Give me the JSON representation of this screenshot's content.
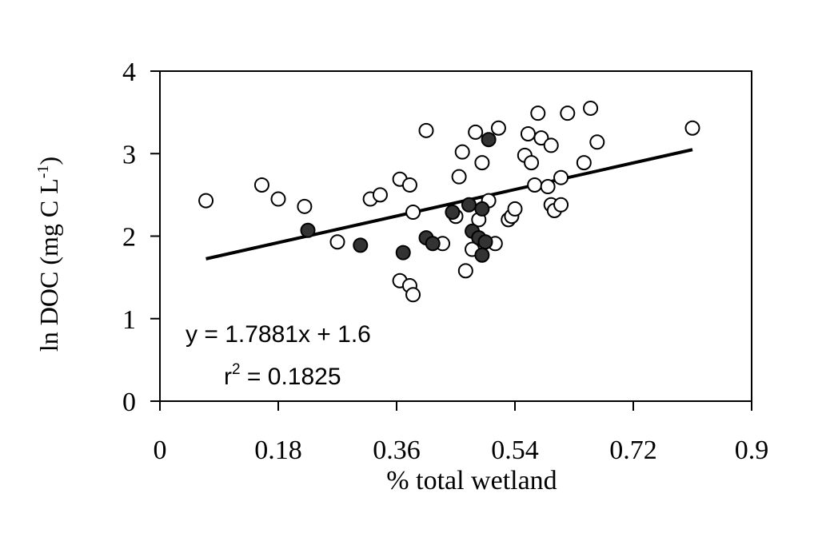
{
  "chart_data": {
    "type": "scatter",
    "title": "",
    "xlabel": "% total wetland",
    "ylabel_main": "ln DOC (mg C L",
    "ylabel_sup": "-1",
    "ylabel_end": ")",
    "xlim": [
      0,
      0.9
    ],
    "ylim": [
      0,
      4
    ],
    "x_ticks": [
      "0",
      "0.18",
      "0.36",
      "0.54",
      "0.72",
      "0.9"
    ],
    "x_tick_values": [
      0,
      0.18,
      0.36,
      0.54,
      0.72,
      0.9
    ],
    "y_ticks": [
      "0",
      "1",
      "2",
      "3",
      "4"
    ],
    "y_tick_values": [
      0,
      1,
      2,
      3,
      4
    ],
    "grid": false,
    "legend": "none",
    "series": [
      {
        "marker": "open-circle",
        "color": "#ffffff",
        "points": [
          [
            0.07,
            2.43
          ],
          [
            0.155,
            2.62
          ],
          [
            0.18,
            2.45
          ],
          [
            0.22,
            2.36
          ],
          [
            0.27,
            1.93
          ],
          [
            0.32,
            2.45
          ],
          [
            0.335,
            2.5
          ],
          [
            0.365,
            2.69
          ],
          [
            0.38,
            2.62
          ],
          [
            0.385,
            2.29
          ],
          [
            0.405,
            3.28
          ],
          [
            0.365,
            1.46
          ],
          [
            0.38,
            1.4
          ],
          [
            0.385,
            1.29
          ],
          [
            0.43,
            1.91
          ],
          [
            0.45,
            2.24
          ],
          [
            0.455,
            2.72
          ],
          [
            0.46,
            3.02
          ],
          [
            0.465,
            1.58
          ],
          [
            0.475,
            1.84
          ],
          [
            0.48,
            3.26
          ],
          [
            0.485,
            2.2
          ],
          [
            0.49,
            2.89
          ],
          [
            0.5,
            2.43
          ],
          [
            0.51,
            1.91
          ],
          [
            0.515,
            3.31
          ],
          [
            0.53,
            2.2
          ],
          [
            0.535,
            2.24
          ],
          [
            0.54,
            2.33
          ],
          [
            0.555,
            2.98
          ],
          [
            0.56,
            3.24
          ],
          [
            0.565,
            2.89
          ],
          [
            0.57,
            2.62
          ],
          [
            0.575,
            3.49
          ],
          [
            0.58,
            3.19
          ],
          [
            0.59,
            2.6
          ],
          [
            0.595,
            3.1
          ],
          [
            0.595,
            2.38
          ],
          [
            0.6,
            2.31
          ],
          [
            0.61,
            2.71
          ],
          [
            0.61,
            2.38
          ],
          [
            0.62,
            3.49
          ],
          [
            0.645,
            2.89
          ],
          [
            0.655,
            3.55
          ],
          [
            0.665,
            3.14
          ],
          [
            0.81,
            3.31
          ]
        ]
      },
      {
        "marker": "filled-circle",
        "color": "#333333",
        "points": [
          [
            0.225,
            2.07
          ],
          [
            0.305,
            1.89
          ],
          [
            0.37,
            1.8
          ],
          [
            0.405,
            1.98
          ],
          [
            0.415,
            1.91
          ],
          [
            0.445,
            2.29
          ],
          [
            0.47,
            2.38
          ],
          [
            0.475,
            2.06
          ],
          [
            0.485,
            1.98
          ],
          [
            0.49,
            2.33
          ],
          [
            0.495,
            1.93
          ],
          [
            0.49,
            1.77
          ],
          [
            0.5,
            3.17
          ]
        ]
      }
    ],
    "trendline": {
      "slope": 1.7881,
      "intercept": 1.6,
      "x_range": [
        0.07,
        0.81
      ]
    },
    "annotations": {
      "equation": "y = 1.7881x + 1.6",
      "r2_base": "r",
      "r2_sup": "2",
      "r2_rest": " = 0.1825"
    }
  }
}
